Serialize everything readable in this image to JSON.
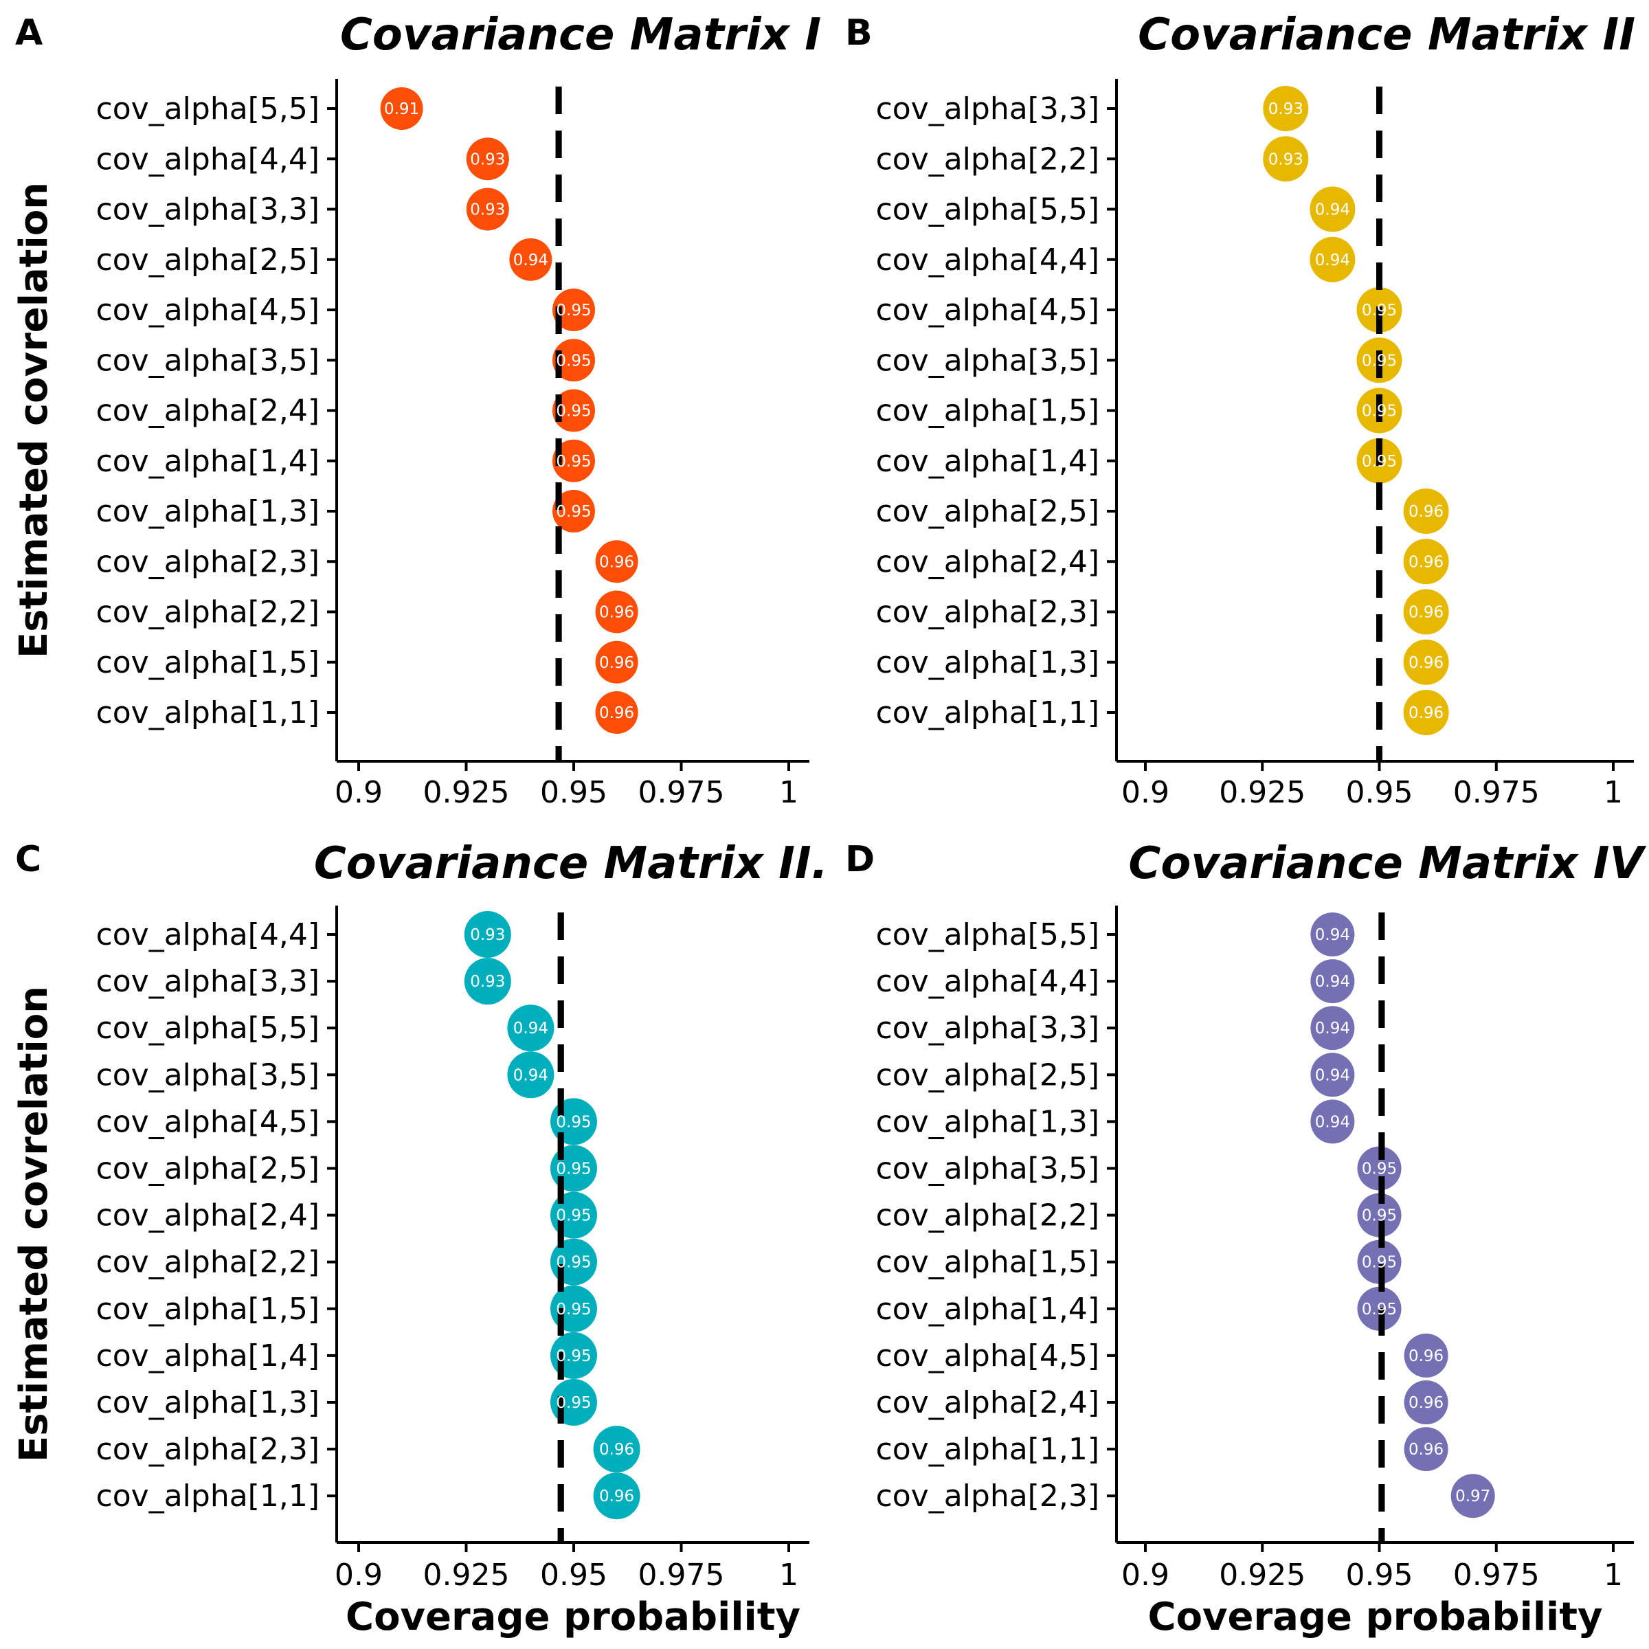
{
  "chart_data": [
    {
      "type": "scatter",
      "panel": "A",
      "title": "Covariance Matrix I",
      "color": "#FC4E07",
      "xlabel": "",
      "ylabel": "Estimated covrelation",
      "xlim": [
        0.9,
        1.0
      ],
      "xticks": [
        0.9,
        0.925,
        0.95,
        0.975,
        1
      ],
      "xtick_labels": [
        "0.9",
        "0.925",
        "0.95",
        "0.975",
        "1"
      ],
      "reference_line": 0.9465,
      "categories": [
        "cov_alpha[5,5]",
        "cov_alpha[4,4]",
        "cov_alpha[3,3]",
        "cov_alpha[2,5]",
        "cov_alpha[4,5]",
        "cov_alpha[3,5]",
        "cov_alpha[2,4]",
        "cov_alpha[1,4]",
        "cov_alpha[1,3]",
        "cov_alpha[2,3]",
        "cov_alpha[2,2]",
        "cov_alpha[1,5]",
        "cov_alpha[1,1]"
      ],
      "values": [
        0.91,
        0.93,
        0.93,
        0.94,
        0.95,
        0.95,
        0.95,
        0.95,
        0.95,
        0.96,
        0.96,
        0.96,
        0.96
      ],
      "value_labels": [
        "0.91",
        "0.93",
        "0.93",
        "0.94",
        "0.95",
        "0.95",
        "0.95",
        "0.95",
        "0.95",
        "0.96",
        "0.96",
        "0.96",
        "0.96"
      ],
      "grid": false
    },
    {
      "type": "scatter",
      "panel": "B",
      "title": "Covariance Matrix II",
      "color": "#E7B800",
      "xlabel": "",
      "ylabel": "",
      "xlim": [
        0.9,
        1.0
      ],
      "xticks": [
        0.9,
        0.925,
        0.95,
        0.975,
        1
      ],
      "xtick_labels": [
        "0.9",
        "0.925",
        "0.95",
        "0.975",
        "1"
      ],
      "reference_line": 0.95,
      "categories": [
        "cov_alpha[3,3]",
        "cov_alpha[2,2]",
        "cov_alpha[5,5]",
        "cov_alpha[4,4]",
        "cov_alpha[4,5]",
        "cov_alpha[3,5]",
        "cov_alpha[1,5]",
        "cov_alpha[1,4]",
        "cov_alpha[2,5]",
        "cov_alpha[2,4]",
        "cov_alpha[2,3]",
        "cov_alpha[1,3]",
        "cov_alpha[1,1]"
      ],
      "values": [
        0.93,
        0.93,
        0.94,
        0.94,
        0.95,
        0.95,
        0.95,
        0.95,
        0.96,
        0.96,
        0.96,
        0.96,
        0.96
      ],
      "value_labels": [
        "0.93",
        "0.93",
        "0.94",
        "0.94",
        "0.95",
        "0.95",
        "0.95",
        "0.95",
        "0.96",
        "0.96",
        "0.96",
        "0.96",
        "0.96"
      ],
      "grid": false
    },
    {
      "type": "scatter",
      "panel": "C",
      "title": "Covariance Matrix II.",
      "color": "#00AFBB",
      "xlabel": "Coverage probability",
      "ylabel": "Estimated covrelation",
      "xlim": [
        0.9,
        1.0
      ],
      "xticks": [
        0.9,
        0.925,
        0.95,
        0.975,
        1
      ],
      "xtick_labels": [
        "0.9",
        "0.925",
        "0.95",
        "0.975",
        "1"
      ],
      "reference_line": 0.947,
      "categories": [
        "cov_alpha[4,4]",
        "cov_alpha[3,3]",
        "cov_alpha[5,5]",
        "cov_alpha[3,5]",
        "cov_alpha[4,5]",
        "cov_alpha[2,5]",
        "cov_alpha[2,4]",
        "cov_alpha[2,2]",
        "cov_alpha[1,5]",
        "cov_alpha[1,4]",
        "cov_alpha[1,3]",
        "cov_alpha[2,3]",
        "cov_alpha[1,1]"
      ],
      "values": [
        0.93,
        0.93,
        0.94,
        0.94,
        0.95,
        0.95,
        0.95,
        0.95,
        0.95,
        0.95,
        0.95,
        0.96,
        0.96
      ],
      "value_labels": [
        "0.93",
        "0.93",
        "0.94",
        "0.94",
        "0.95",
        "0.95",
        "0.95",
        "0.95",
        "0.95",
        "0.95",
        "0.95",
        "0.96",
        "0.96"
      ],
      "grid": false
    },
    {
      "type": "scatter",
      "panel": "D",
      "title": "Covariance Matrix IV",
      "color": "#7570B3",
      "xlabel": "Coverage probability",
      "ylabel": "",
      "xlim": [
        0.9,
        1.0
      ],
      "xticks": [
        0.9,
        0.925,
        0.95,
        0.975,
        1
      ],
      "xtick_labels": [
        "0.9",
        "0.925",
        "0.95",
        "0.975",
        "1"
      ],
      "reference_line": 0.9505,
      "categories": [
        "cov_alpha[5,5]",
        "cov_alpha[4,4]",
        "cov_alpha[3,3]",
        "cov_alpha[2,5]",
        "cov_alpha[1,3]",
        "cov_alpha[3,5]",
        "cov_alpha[2,2]",
        "cov_alpha[1,5]",
        "cov_alpha[1,4]",
        "cov_alpha[4,5]",
        "cov_alpha[2,4]",
        "cov_alpha[1,1]",
        "cov_alpha[2,3]"
      ],
      "values": [
        0.94,
        0.94,
        0.94,
        0.94,
        0.94,
        0.95,
        0.95,
        0.95,
        0.95,
        0.96,
        0.96,
        0.96,
        0.97
      ],
      "value_labels": [
        "0.94",
        "0.94",
        "0.94",
        "0.94",
        "0.94",
        "0.95",
        "0.95",
        "0.95",
        "0.95",
        "0.96",
        "0.96",
        "0.96",
        "0.97"
      ],
      "grid": false
    }
  ]
}
